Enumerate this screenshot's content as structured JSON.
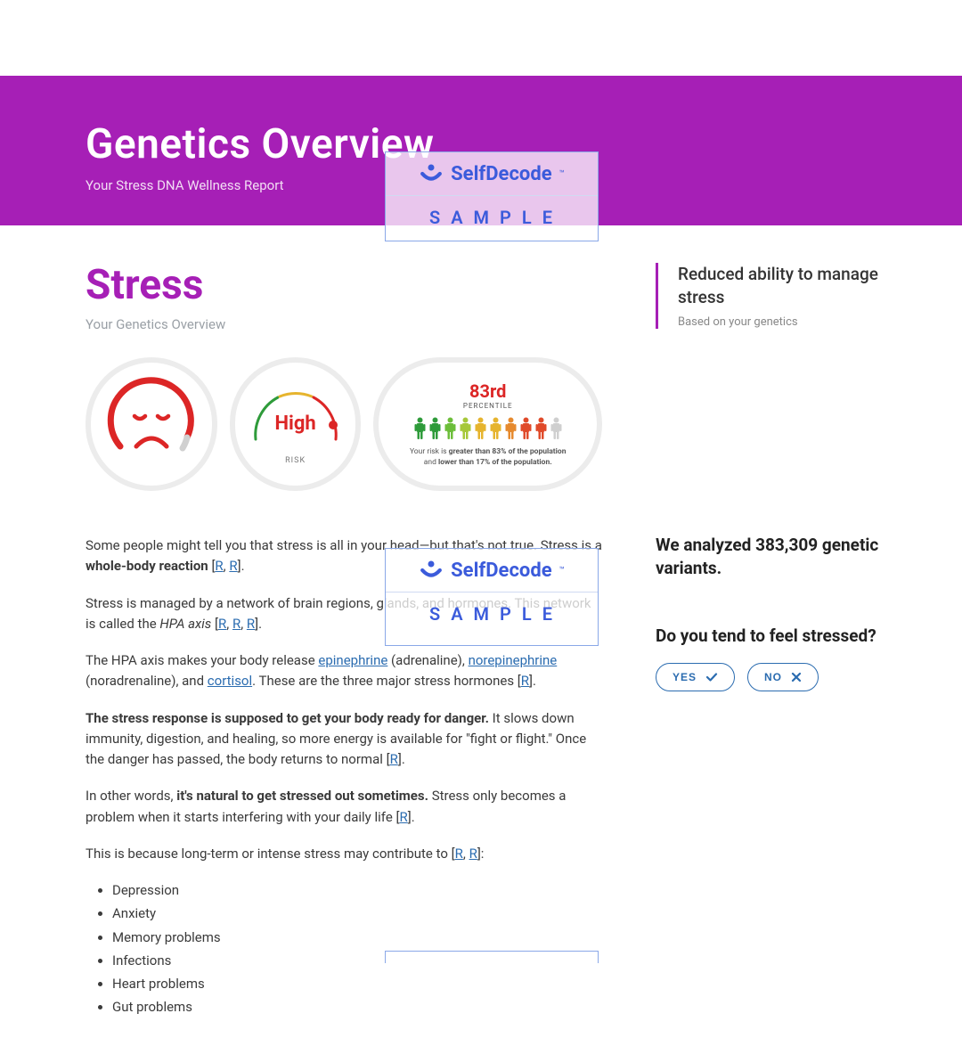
{
  "brand": {
    "name": "SelfDecode",
    "sample_label": "SAMPLE",
    "logo_color": "#3b5bdb"
  },
  "header": {
    "title": "Genetics Overview",
    "subtitle": "Your Stress DNA Wellness Report",
    "bg": "#a61fb6"
  },
  "section": {
    "title": "Stress",
    "subtitle": "Your Genetics Overview",
    "title_color": "#a61fb6"
  },
  "gauges": {
    "face": {
      "color": "#dc2626"
    },
    "risk": {
      "label": "High",
      "sub": "RISK",
      "color": "#dc2626",
      "fill_pct": 78
    },
    "percentile": {
      "value": "83rd",
      "label": "PERCENTILE",
      "people_colors": [
        "#2e9b3a",
        "#2e9b3a",
        "#6cbe3a",
        "#a7c83a",
        "#e6b42e",
        "#e6b42e",
        "#e68a2e",
        "#e04a2a",
        "#e04a2a",
        "#cfcfcf"
      ],
      "desc_prefix": "Your risk is ",
      "desc_bold1": "greater than 83% of the population",
      "desc_mid": " and ",
      "desc_bold2": "lower than 17% of the population."
    }
  },
  "body": {
    "p1a": "Some people might tell you that stress is all in your head—but that's not true. Stress is a ",
    "p1b": "whole-body reaction",
    "p1c": " [",
    "p2a": "Stress is managed by a network of brain regions, glands, and hormones. This network is called the ",
    "p2b": "HPA axis",
    "p2c": " [",
    "p3a": "The HPA axis makes your body release ",
    "p3b": " (adrenaline), ",
    "p3c": " (noradrenaline), and ",
    "p3d": ". These are the three major stress hormones [",
    "link_epi": "epinephrine",
    "link_nor": "norepinephrine",
    "link_cort": "cortisol",
    "p4a": "The stress response is supposed to get your body ready for danger.",
    "p4b": " It slows down immunity, digestion, and healing, so more energy is available for \"fight or flight.\" Once the danger has passed, the body returns to normal [",
    "p5a": "In other words, ",
    "p5b": "it's natural to get stressed out sometimes.",
    "p5c": " Stress only becomes a problem when it starts interfering with your daily life [",
    "p6": "This is because long-term or intense stress may contribute to [",
    "ref": "R",
    "close": "].",
    "close2": "]:",
    "list": [
      "Depression",
      "Anxiety",
      "Memory problems",
      "Infections",
      "Heart problems",
      "Gut problems"
    ]
  },
  "sidebar": {
    "callout_title": "Reduced ability to manage stress",
    "callout_sub": "Based on your genetics",
    "analyzed_a": "We analyzed ",
    "analyzed_b": "383,309 genetic variants.",
    "question": "Do you tend to feel stressed?",
    "yes": "YES",
    "no": "NO"
  }
}
